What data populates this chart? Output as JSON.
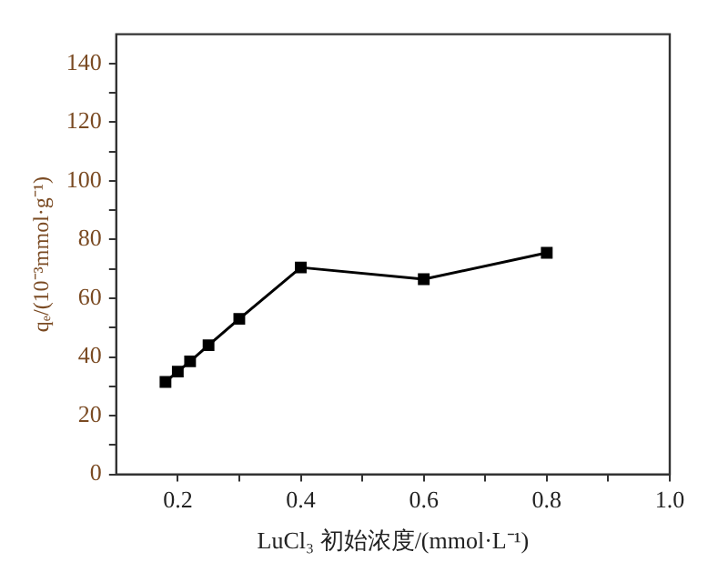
{
  "chart_data": {
    "type": "line",
    "xlabel": "LuCl₃ 初始浓度/(mmol·L⁻¹)",
    "ylabel": "qₑ/(10⁻³mmol·g⁻¹)",
    "x": [
      0.18,
      0.2,
      0.22,
      0.25,
      0.3,
      0.4,
      0.6,
      0.8
    ],
    "series": [
      {
        "color": "#000000",
        "values": [
          31.5,
          35,
          38.5,
          44,
          53,
          70.5,
          66.5,
          75.5
        ]
      }
    ],
    "xlim": [
      0.1,
      1.0
    ],
    "xticks": [
      0.2,
      {
        "value": 0.3,
        "label": null
      },
      0.4,
      {
        "value": 0.5,
        "label": null
      },
      0.6,
      {
        "value": 0.7,
        "label": null
      },
      0.8,
      {
        "value": 0.9,
        "label": null
      },
      {
        "value": 1.0,
        "label": "1.0"
      }
    ],
    "ylim": [
      0,
      150
    ],
    "yticks": [
      0,
      {
        "value": 10,
        "label": null
      },
      20,
      {
        "value": 30,
        "label": null
      },
      40,
      {
        "value": 50,
        "label": null
      },
      60,
      {
        "value": 70,
        "label": null
      },
      80,
      {
        "value": 90,
        "label": null
      },
      100,
      {
        "value": 110,
        "label": null
      },
      120,
      {
        "value": 130,
        "label": null
      },
      140
    ],
    "marker": "square",
    "line_style": "solid",
    "legend": false
  }
}
